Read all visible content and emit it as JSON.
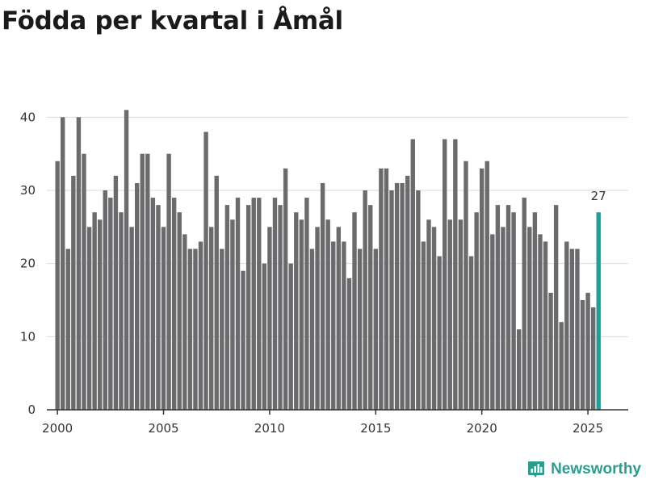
{
  "colors": {
    "bar": "#6b6b6e",
    "highlight": "#17a398",
    "brand": "#2a9d8f"
  },
  "brand": {
    "name": "Newsworthy",
    "icon": "bar-chart-pin-icon"
  },
  "chart_data": {
    "type": "bar",
    "title": "Födda per kvartal i Åmål",
    "xlabel": "",
    "ylabel": "",
    "ylim": [
      0,
      45
    ],
    "yticks": [
      0,
      10,
      20,
      30,
      40
    ],
    "xlim": [
      1999.5,
      2026.9
    ],
    "xticks": [
      2000,
      2005,
      2010,
      2015,
      2020,
      2025
    ],
    "start_period": "2000 Q1",
    "frequency": "quarter",
    "grid": true,
    "highlight_last": true,
    "last_label": "27",
    "values": [
      34,
      40,
      22,
      32,
      40,
      35,
      25,
      27,
      26,
      30,
      29,
      32,
      27,
      41,
      25,
      31,
      35,
      35,
      29,
      28,
      25,
      35,
      29,
      27,
      24,
      22,
      22,
      23,
      38,
      25,
      32,
      22,
      28,
      26,
      29,
      19,
      28,
      29,
      29,
      20,
      25,
      29,
      28,
      33,
      20,
      27,
      26,
      29,
      22,
      25,
      31,
      26,
      23,
      25,
      23,
      18,
      27,
      22,
      30,
      28,
      22,
      33,
      33,
      30,
      31,
      31,
      32,
      37,
      30,
      23,
      26,
      25,
      21,
      37,
      26,
      37,
      26,
      34,
      21,
      27,
      33,
      34,
      24,
      28,
      25,
      28,
      27,
      11,
      29,
      25,
      27,
      24,
      23,
      16,
      28,
      12,
      23,
      22,
      22,
      15,
      16,
      14,
      27
    ]
  }
}
